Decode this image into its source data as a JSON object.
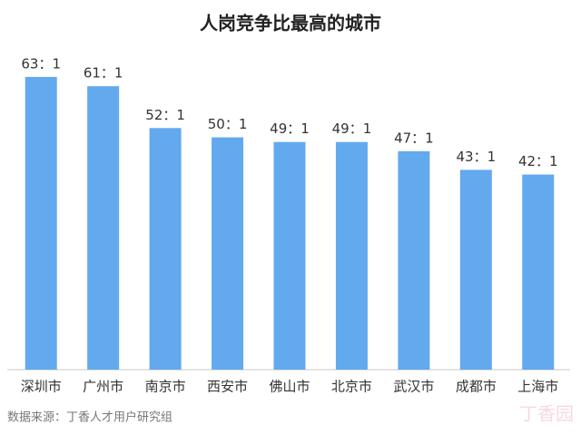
{
  "chart_data": {
    "type": "bar",
    "title": "人岗竞争比最高的城市",
    "categories": [
      "深圳市",
      "广州市",
      "南京市",
      "西安市",
      "佛山市",
      "北京市",
      "武汉市",
      "成都市",
      "上海市"
    ],
    "values": [
      63,
      61,
      52,
      50,
      49,
      49,
      47,
      43,
      42
    ],
    "value_labels": [
      "63：1",
      "61：1",
      "52：1",
      "50：1",
      "49：1",
      "49：1",
      "47：1",
      "43：1",
      "42：1"
    ],
    "color": "#63a9ee",
    "ylim": [
      0,
      70
    ],
    "source": "数据来源：丁香人才用户研究组",
    "watermark": "丁香园"
  }
}
